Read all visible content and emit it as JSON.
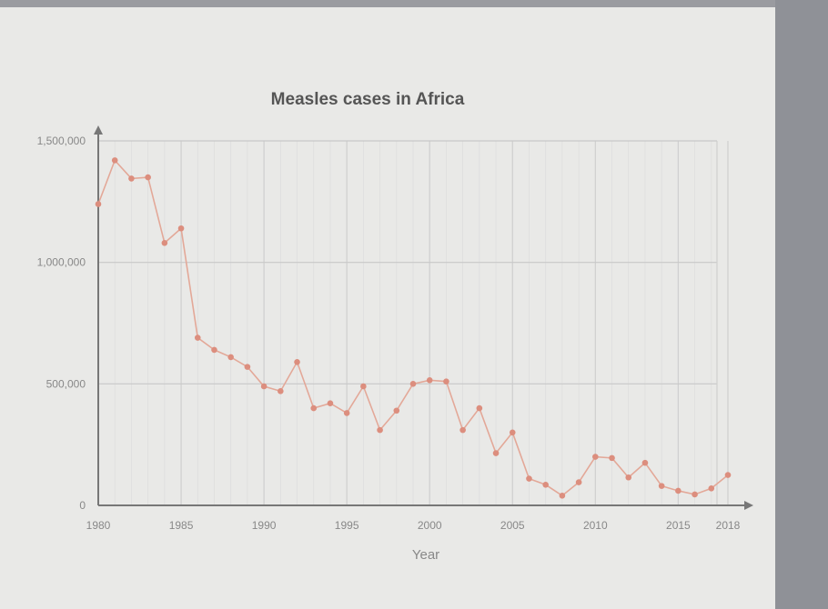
{
  "chart_data": {
    "type": "line",
    "title": "Measles cases in Africa",
    "xlabel": "Year",
    "ylabel": "",
    "xlim": [
      1980,
      2018
    ],
    "ylim": [
      0,
      1500000
    ],
    "x_ticks": [
      1980,
      1985,
      1990,
      1995,
      2000,
      2005,
      2010,
      2015,
      2018
    ],
    "y_ticks": [
      0,
      500000,
      1000000,
      1500000
    ],
    "x_tick_labels": [
      "1980",
      "1985",
      "1990",
      "1995",
      "2000",
      "2005",
      "2010",
      "2015",
      "2018"
    ],
    "y_tick_labels": [
      "0",
      "500,000",
      "1,000,000",
      "1,500,000"
    ],
    "grid": true,
    "colors": {
      "line": "#e3a898",
      "marker": "#dc8e7e",
      "axis": "#777777",
      "grid": "#d2d2d2"
    },
    "series": [
      {
        "x": [
          1980,
          1981,
          1982,
          1983,
          1984,
          1985,
          1986,
          1987,
          1988,
          1989,
          1990,
          1991,
          1992,
          1993,
          1994,
          1995,
          1996,
          1997,
          1998,
          1999,
          2000,
          2001,
          2002,
          2003,
          2004,
          2005,
          2006,
          2007,
          2008,
          2009,
          2010,
          2011,
          2012,
          2013,
          2014,
          2015,
          2016,
          2017,
          2018
        ],
        "values": [
          1240000,
          1420000,
          1345000,
          1350000,
          1080000,
          1140000,
          690000,
          640000,
          610000,
          570000,
          490000,
          470000,
          590000,
          400000,
          420000,
          380000,
          490000,
          310000,
          390000,
          500000,
          515000,
          510000,
          310000,
          400000,
          215000,
          300000,
          110000,
          85000,
          40000,
          95000,
          200000,
          195000,
          115000,
          175000,
          80000,
          60000,
          45000,
          70000,
          125000
        ]
      }
    ]
  }
}
